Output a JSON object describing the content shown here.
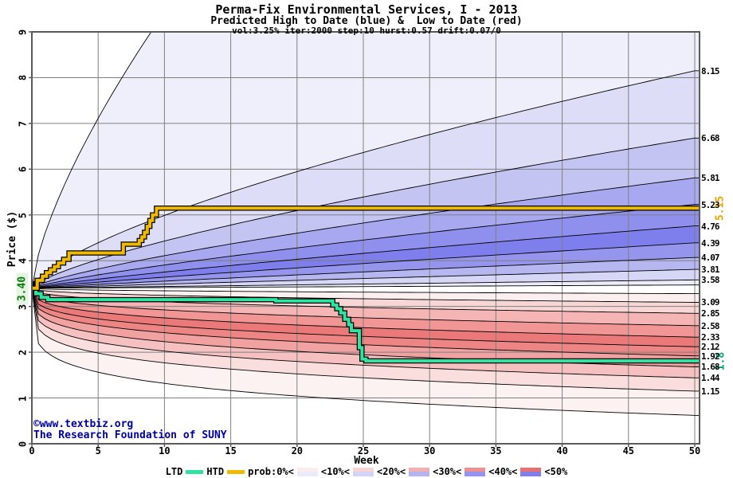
{
  "header": {
    "title": "Perma-Fix Environmental Services, I - 2013",
    "subtitle": "Predicted High to Date (blue) &  Low to Date (red)",
    "params": "vol:3.25% iter:2000 step:10 hurst:0.57 drift:0.07/0"
  },
  "copyright": {
    "line1": "©www.textbiz.org",
    "line2": "The Research Foundation of SUNY",
    "color": "#0000a0"
  },
  "chart_data": {
    "type": "area",
    "subtype": "probability-fan-bands",
    "title": "Perma-Fix Environmental Services, I - 2013",
    "xlabel": "Week",
    "ylabel": "Price ($)",
    "xlim": [
      0,
      50
    ],
    "ylim": [
      0,
      9
    ],
    "x_ticks": [
      0,
      5,
      10,
      15,
      20,
      25,
      30,
      35,
      40,
      45,
      50
    ],
    "y_ticks": [
      0,
      1,
      2,
      3,
      4,
      5,
      6,
      7,
      8,
      9
    ],
    "grid": true,
    "start_week": 0,
    "start_price": 3.4,
    "start_price_label": "3.40",
    "start_label_color": "#0e7a0e",
    "start_label_bg": "#e3f4e3",
    "high_boundaries": [
      {
        "end": 22.0,
        "k": 0.7,
        "label": ""
      },
      {
        "end": 8.15,
        "k": 0.68,
        "label": "8.15"
      },
      {
        "end": 6.68,
        "k": 0.72,
        "label": "6.68"
      },
      {
        "end": 5.81,
        "k": 0.76,
        "label": "5.81"
      },
      {
        "end": 5.23,
        "k": 0.8,
        "label": "5.23"
      },
      {
        "end": 4.76,
        "k": 0.84,
        "label": "4.76"
      },
      {
        "end": 4.39,
        "k": 0.88,
        "label": "4.39"
      },
      {
        "end": 4.07,
        "k": 0.92,
        "label": "4.07"
      },
      {
        "end": 3.81,
        "k": 0.96,
        "label": "3.81"
      },
      {
        "end": 3.58,
        "k": 1.0,
        "label": "3.58"
      },
      {
        "end": 3.47,
        "k": 1.05,
        "label": ""
      }
    ],
    "low_boundaries": [
      {
        "end": 0.62,
        "k": 0.18,
        "label": ""
      },
      {
        "end": 1.15,
        "k": 0.2,
        "label": "1.15"
      },
      {
        "end": 1.44,
        "k": 0.22,
        "label": "1.44"
      },
      {
        "end": 1.68,
        "k": 0.24,
        "label": "1.68"
      },
      {
        "end": 1.92,
        "k": 0.26,
        "label": "1.92"
      },
      {
        "end": 2.12,
        "k": 0.28,
        "label": "2.12"
      },
      {
        "end": 2.33,
        "k": 0.31,
        "label": "2.33"
      },
      {
        "end": 2.58,
        "k": 0.34,
        "label": "2.58"
      },
      {
        "end": 2.85,
        "k": 0.38,
        "label": "2.85"
      },
      {
        "end": 3.09,
        "k": 0.42,
        "label": "3.09"
      },
      {
        "end": 3.28,
        "k": 0.46,
        "label": ""
      }
    ],
    "high_band_colors": [
      "#efeffb",
      "#ddddf8",
      "#c4c4f3",
      "#a8a8f0",
      "#8f8fee",
      "#7e7eec",
      "#9595ee",
      "#b6b6f1",
      "#d6d6f6",
      "#ebebfa"
    ],
    "low_band_colors": [
      "#fdf2f2",
      "#fadddd",
      "#f6c0c0",
      "#f2a1a1",
      "#ee8585",
      "#ec7979",
      "#f19595",
      "#f5b5b5",
      "#f9d6d6",
      "#fcefef"
    ],
    "boundary_line_color": "#000000",
    "grid_color": "#7f7f7f",
    "frame_color": "#5a5a5a",
    "htd": {
      "name": "HTD",
      "color": "#f0ba00",
      "end_label": "5.15",
      "end_label_color": "#e8a400",
      "points": [
        [
          0,
          3.4
        ],
        [
          0.4,
          3.57
        ],
        [
          0.8,
          3.66
        ],
        [
          1.1,
          3.74
        ],
        [
          1.4,
          3.8
        ],
        [
          1.7,
          3.87
        ],
        [
          2.0,
          3.95
        ],
        [
          2.4,
          4.03
        ],
        [
          2.8,
          4.17
        ],
        [
          6.7,
          4.17
        ],
        [
          6.9,
          4.36
        ],
        [
          7.9,
          4.36
        ],
        [
          8.1,
          4.44
        ],
        [
          8.3,
          4.52
        ],
        [
          8.5,
          4.62
        ],
        [
          8.7,
          4.75
        ],
        [
          8.9,
          4.88
        ],
        [
          9.1,
          5.0
        ],
        [
          9.4,
          5.15
        ],
        [
          50,
          5.15
        ]
      ]
    },
    "ltd": {
      "name": "LTD",
      "color": "#2fe3a0",
      "end_label": "1.8",
      "end_label_color": "#00a878",
      "points": [
        [
          0,
          3.4
        ],
        [
          0.3,
          3.28
        ],
        [
          0.7,
          3.2
        ],
        [
          1.2,
          3.15
        ],
        [
          18.0,
          3.15
        ],
        [
          18.4,
          3.12
        ],
        [
          22.4,
          3.12
        ],
        [
          22.7,
          3.03
        ],
        [
          23.0,
          2.95
        ],
        [
          23.3,
          2.86
        ],
        [
          23.6,
          2.72
        ],
        [
          23.9,
          2.6
        ],
        [
          24.1,
          2.47
        ],
        [
          24.6,
          2.47
        ],
        [
          24.7,
          2.1
        ],
        [
          24.9,
          1.85
        ],
        [
          25.2,
          1.81
        ],
        [
          50,
          1.81
        ]
      ]
    },
    "legend": {
      "position": "bottom-center",
      "ltd_label": "LTD",
      "htd_label": "HTD",
      "prob_label": "prob:0%<",
      "steps": [
        {
          "label": "<10%<",
          "red": "#fcecec",
          "blue": "#eaeafa"
        },
        {
          "label": "<20%<",
          "red": "#f8d4d4",
          "blue": "#d4d4f6"
        },
        {
          "label": "<30%<",
          "red": "#f4b0b0",
          "blue": "#b4b4f1"
        },
        {
          "label": "<40%<",
          "red": "#f08f8f",
          "blue": "#9494ee"
        },
        {
          "label": "<50%",
          "red": "#ec6f6f",
          "blue": "#7f7fec"
        }
      ]
    }
  }
}
